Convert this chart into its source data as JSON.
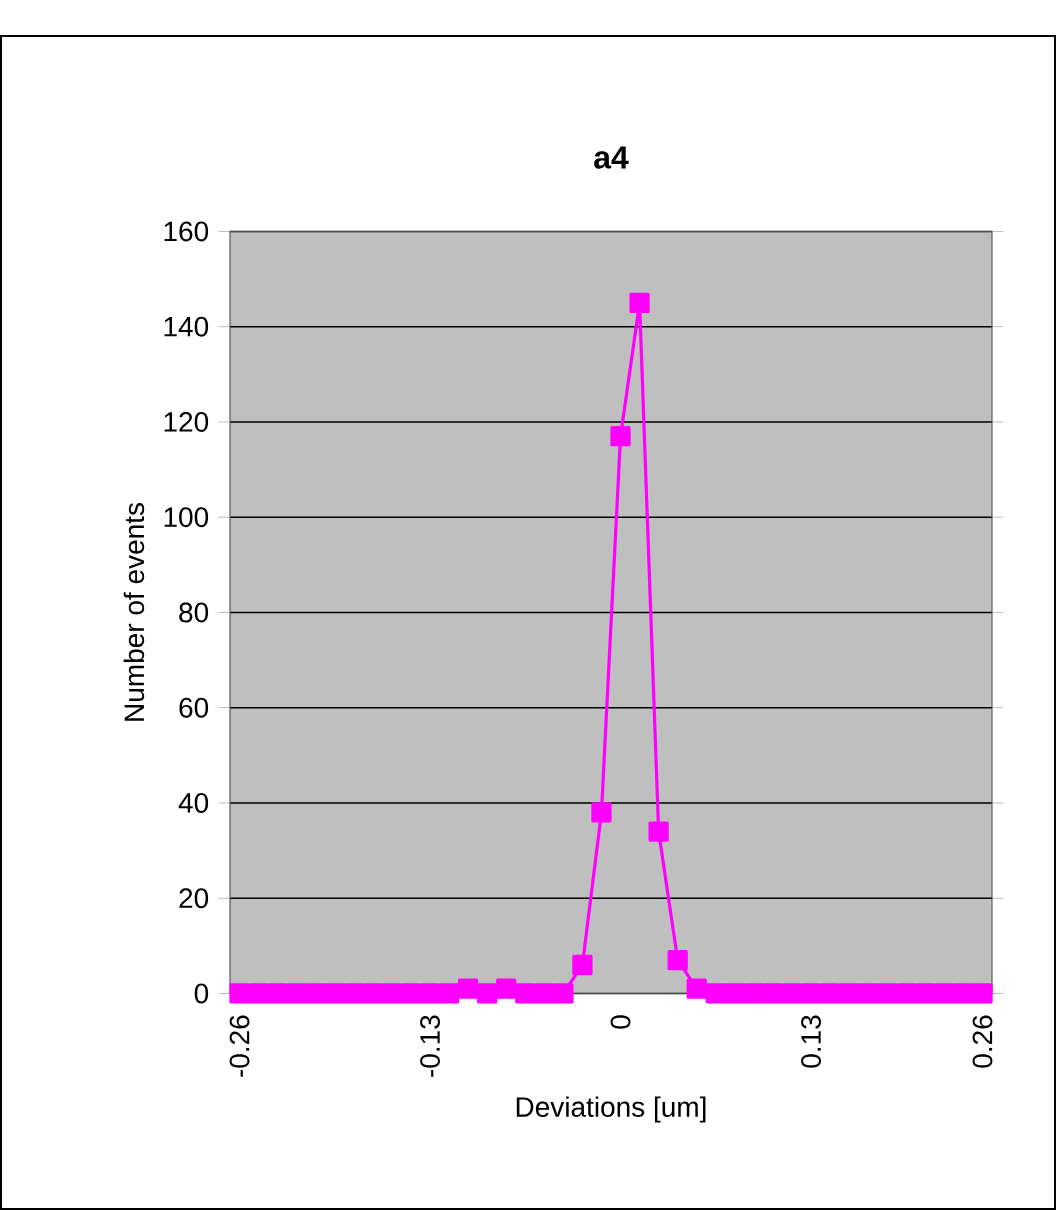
{
  "chart_data": {
    "type": "line",
    "title": "a4",
    "xlabel": "Deviations [um]",
    "ylabel": "Number of events",
    "categories": [
      "-0.26",
      null,
      null,
      null,
      null,
      null,
      null,
      null,
      null,
      null,
      "-0.13",
      null,
      null,
      null,
      null,
      null,
      null,
      null,
      null,
      null,
      "0",
      null,
      null,
      null,
      null,
      null,
      null,
      null,
      null,
      null,
      "0.13",
      null,
      null,
      null,
      null,
      null,
      null,
      null,
      null,
      "0.26"
    ],
    "series": [
      {
        "color": "#ff00ff",
        "values": [
          0,
          0,
          0,
          0,
          0,
          0,
          0,
          0,
          0,
          0,
          0,
          0,
          1,
          0,
          1,
          0,
          0,
          0,
          6,
          38,
          117,
          145,
          34,
          7,
          1,
          0,
          0,
          0,
          0,
          0,
          0,
          0,
          0,
          0,
          0,
          0,
          0,
          0,
          0,
          0
        ]
      }
    ],
    "ylim": [
      0,
      160
    ],
    "yticks": [
      0,
      20,
      40,
      60,
      80,
      100,
      120,
      140,
      160
    ],
    "grid": "y",
    "marker": "square",
    "line_style": "solid"
  }
}
